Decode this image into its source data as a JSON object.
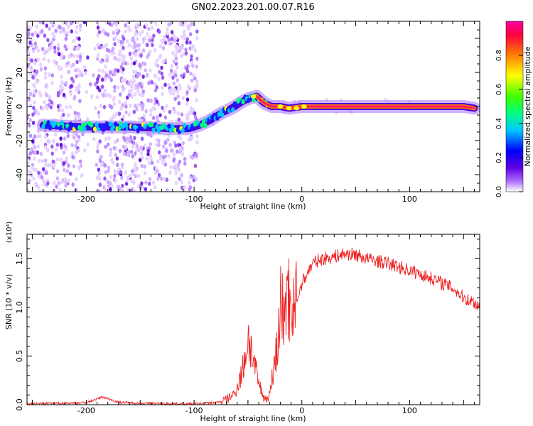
{
  "title": "GN02.2023.201.00.07.R16",
  "chart_data": [
    {
      "type": "heatmap",
      "xlabel": "Height of straight line (km)",
      "ylabel": "Frequency (Hz)",
      "xlim": [
        -255,
        165
      ],
      "ylim": [
        -50,
        50
      ],
      "xticks": [
        -200,
        -100,
        0,
        100
      ],
      "yticks": [
        -40,
        -20,
        0,
        20,
        40
      ],
      "grid": false,
      "colorbar": {
        "label": "Normalized spectral amplitude",
        "range": [
          0,
          1
        ],
        "ticks": [
          "0.0",
          "0.2",
          "0.4",
          "0.6",
          "0.8"
        ],
        "colors": [
          "#ffffff",
          "#b070ff",
          "#6000e0",
          "#0000ff",
          "#00c8ff",
          "#00ff80",
          "#40ff00",
          "#ffff00",
          "#ff8000",
          "#ff0040",
          "#ff00a0"
        ]
      },
      "ridge": {
        "x": [
          -240,
          -220,
          -200,
          -180,
          -160,
          -140,
          -120,
          -105,
          -95,
          -85,
          -75,
          -65,
          -55,
          -48,
          -42,
          -35,
          -28,
          -20,
          -12,
          0,
          20,
          60,
          100,
          150,
          160
        ],
        "y": [
          -11,
          -11.5,
          -12,
          -12,
          -12,
          -12.5,
          -13,
          -13,
          -11,
          -8,
          -4,
          -1,
          3,
          5,
          6,
          2,
          0,
          0,
          -1,
          0,
          0,
          0,
          0,
          0,
          -1
        ]
      }
    },
    {
      "type": "line",
      "xlabel": "Height of straight line (km)",
      "ylabel": "SNR (10 * v/v)",
      "y_multiplier": "(x10⁴)",
      "xlim": [
        -255,
        165
      ],
      "ylim": [
        0,
        1.75
      ],
      "xticks": [
        -200,
        -100,
        0,
        100
      ],
      "yticks": [
        "0.0",
        "0.5",
        "1.0",
        "1.5"
      ],
      "grid": false,
      "series": [
        {
          "color": "#ee2222",
          "x": [
            -255,
            -220,
            -200,
            -185,
            -170,
            -150,
            -120,
            -100,
            -80,
            -70,
            -62,
            -58,
            -55,
            -52,
            -49,
            -46,
            -43,
            -40,
            -37,
            -35,
            -33,
            -30,
            -28,
            -25,
            -22,
            -20,
            -18,
            -15,
            -12,
            -10,
            -8,
            -5,
            0,
            5,
            10,
            15,
            20,
            30,
            40,
            50,
            60,
            80,
            100,
            120,
            140,
            150,
            160,
            165
          ],
          "y": [
            0.01,
            0.015,
            0.02,
            0.08,
            0.025,
            0.015,
            0.01,
            0.01,
            0.02,
            0.05,
            0.12,
            0.25,
            0.35,
            0.55,
            0.7,
            0.5,
            0.35,
            0.22,
            0.12,
            0.07,
            0.06,
            0.1,
            0.25,
            0.45,
            0.65,
            0.9,
            0.95,
            1.05,
            1.1,
            0.95,
            1.15,
            1.05,
            1.25,
            1.35,
            1.45,
            1.48,
            1.5,
            1.52,
            1.55,
            1.54,
            1.5,
            1.45,
            1.38,
            1.3,
            1.2,
            1.1,
            1.05,
            1.0
          ]
        }
      ]
    }
  ]
}
